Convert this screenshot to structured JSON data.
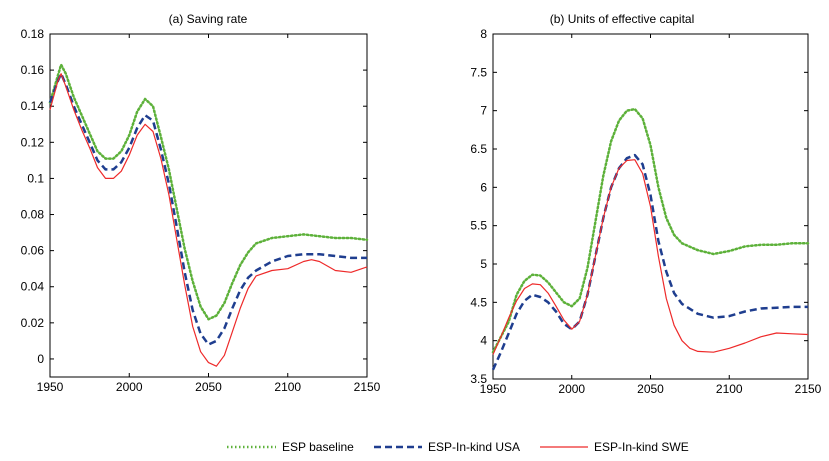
{
  "chart_data": [
    {
      "type": "line",
      "title": "(a) Saving rate",
      "xlabel": "",
      "ylabel": "",
      "xlim": [
        1950,
        2150
      ],
      "ylim": [
        -0.01,
        0.18
      ],
      "xticks": [
        "1950",
        "2000",
        "2050",
        "2100",
        "2150"
      ],
      "yticks": [
        "0",
        "0.02",
        "0.04",
        "0.06",
        "0.08",
        "0.1",
        "0.12",
        "0.14",
        "0.16",
        "0.18"
      ],
      "series": [
        {
          "name": "ESP baseline",
          "color": "#5db13a",
          "style": "dotted",
          "points": [
            [
              1950,
              0.142
            ],
            [
              1955,
              0.157
            ],
            [
              1957,
              0.163
            ],
            [
              1960,
              0.158
            ],
            [
              1965,
              0.145
            ],
            [
              1970,
              0.135
            ],
            [
              1975,
              0.125
            ],
            [
              1980,
              0.115
            ],
            [
              1985,
              0.111
            ],
            [
              1990,
              0.111
            ],
            [
              1995,
              0.115
            ],
            [
              2000,
              0.124
            ],
            [
              2005,
              0.137
            ],
            [
              2010,
              0.144
            ],
            [
              2015,
              0.14
            ],
            [
              2020,
              0.123
            ],
            [
              2025,
              0.105
            ],
            [
              2030,
              0.083
            ],
            [
              2035,
              0.061
            ],
            [
              2040,
              0.043
            ],
            [
              2045,
              0.029
            ],
            [
              2050,
              0.022
            ],
            [
              2055,
              0.024
            ],
            [
              2060,
              0.031
            ],
            [
              2065,
              0.042
            ],
            [
              2070,
              0.052
            ],
            [
              2075,
              0.059
            ],
            [
              2080,
              0.064
            ],
            [
              2090,
              0.067
            ],
            [
              2100,
              0.068
            ],
            [
              2110,
              0.069
            ],
            [
              2120,
              0.068
            ],
            [
              2130,
              0.067
            ],
            [
              2140,
              0.067
            ],
            [
              2150,
              0.066
            ]
          ]
        },
        {
          "name": "ESP-In-kind USA",
          "color": "#1f3e8f",
          "style": "dashed",
          "points": [
            [
              1950,
              0.142
            ],
            [
              1955,
              0.154
            ],
            [
              1957,
              0.158
            ],
            [
              1960,
              0.152
            ],
            [
              1965,
              0.14
            ],
            [
              1970,
              0.13
            ],
            [
              1975,
              0.12
            ],
            [
              1980,
              0.11
            ],
            [
              1985,
              0.105
            ],
            [
              1990,
              0.105
            ],
            [
              1995,
              0.109
            ],
            [
              2000,
              0.117
            ],
            [
              2005,
              0.128
            ],
            [
              2010,
              0.135
            ],
            [
              2015,
              0.132
            ],
            [
              2020,
              0.116
            ],
            [
              2025,
              0.097
            ],
            [
              2030,
              0.073
            ],
            [
              2035,
              0.048
            ],
            [
              2040,
              0.027
            ],
            [
              2045,
              0.014
            ],
            [
              2050,
              0.008
            ],
            [
              2055,
              0.01
            ],
            [
              2060,
              0.017
            ],
            [
              2065,
              0.028
            ],
            [
              2070,
              0.038
            ],
            [
              2075,
              0.045
            ],
            [
              2080,
              0.049
            ],
            [
              2090,
              0.054
            ],
            [
              2100,
              0.057
            ],
            [
              2110,
              0.058
            ],
            [
              2120,
              0.058
            ],
            [
              2130,
              0.057
            ],
            [
              2140,
              0.056
            ],
            [
              2150,
              0.056
            ]
          ]
        },
        {
          "name": "ESP-In-kind SWE",
          "color": "#ee2a2a",
          "style": "solid",
          "points": [
            [
              1950,
              0.138
            ],
            [
              1955,
              0.154
            ],
            [
              1957,
              0.158
            ],
            [
              1960,
              0.151
            ],
            [
              1965,
              0.138
            ],
            [
              1970,
              0.127
            ],
            [
              1975,
              0.117
            ],
            [
              1980,
              0.106
            ],
            [
              1985,
              0.1
            ],
            [
              1990,
              0.1
            ],
            [
              1995,
              0.104
            ],
            [
              2000,
              0.113
            ],
            [
              2005,
              0.124
            ],
            [
              2010,
              0.13
            ],
            [
              2015,
              0.126
            ],
            [
              2020,
              0.111
            ],
            [
              2025,
              0.091
            ],
            [
              2030,
              0.066
            ],
            [
              2035,
              0.041
            ],
            [
              2040,
              0.018
            ],
            [
              2045,
              0.004
            ],
            [
              2050,
              -0.002
            ],
            [
              2055,
              -0.004
            ],
            [
              2060,
              0.002
            ],
            [
              2065,
              0.015
            ],
            [
              2070,
              0.028
            ],
            [
              2075,
              0.039
            ],
            [
              2080,
              0.046
            ],
            [
              2090,
              0.049
            ],
            [
              2100,
              0.05
            ],
            [
              2110,
              0.054
            ],
            [
              2115,
              0.055
            ],
            [
              2120,
              0.054
            ],
            [
              2130,
              0.049
            ],
            [
              2140,
              0.048
            ],
            [
              2150,
              0.051
            ]
          ]
        }
      ]
    },
    {
      "type": "line",
      "title": "(b) Units of effective capital",
      "xlabel": "",
      "ylabel": "",
      "xlim": [
        1950,
        2150
      ],
      "ylim": [
        3.5,
        8
      ],
      "xticks": [
        "1950",
        "2000",
        "2050",
        "2100",
        "2150"
      ],
      "yticks": [
        "3.5",
        "4",
        "4.5",
        "5",
        "5.5",
        "6",
        "6.5",
        "7",
        "7.5",
        "8"
      ],
      "series": [
        {
          "name": "ESP baseline",
          "color": "#5db13a",
          "style": "dotted",
          "points": [
            [
              1950,
              3.85
            ],
            [
              1960,
              4.25
            ],
            [
              1965,
              4.6
            ],
            [
              1970,
              4.78
            ],
            [
              1975,
              4.86
            ],
            [
              1980,
              4.85
            ],
            [
              1985,
              4.76
            ],
            [
              1990,
              4.63
            ],
            [
              1995,
              4.5
            ],
            [
              2000,
              4.45
            ],
            [
              2005,
              4.55
            ],
            [
              2010,
              4.95
            ],
            [
              2015,
              5.55
            ],
            [
              2020,
              6.15
            ],
            [
              2025,
              6.6
            ],
            [
              2030,
              6.87
            ],
            [
              2035,
              7.0
            ],
            [
              2040,
              7.02
            ],
            [
              2045,
              6.9
            ],
            [
              2050,
              6.55
            ],
            [
              2055,
              6.0
            ],
            [
              2060,
              5.6
            ],
            [
              2065,
              5.38
            ],
            [
              2070,
              5.27
            ],
            [
              2080,
              5.18
            ],
            [
              2090,
              5.13
            ],
            [
              2100,
              5.17
            ],
            [
              2110,
              5.23
            ],
            [
              2120,
              5.25
            ],
            [
              2130,
              5.25
            ],
            [
              2140,
              5.27
            ],
            [
              2150,
              5.27
            ]
          ]
        },
        {
          "name": "ESP-In-kind USA",
          "color": "#1f3e8f",
          "style": "dashed",
          "points": [
            [
              1950,
              3.62
            ],
            [
              1955,
              3.85
            ],
            [
              1960,
              4.1
            ],
            [
              1965,
              4.35
            ],
            [
              1970,
              4.52
            ],
            [
              1975,
              4.6
            ],
            [
              1980,
              4.57
            ],
            [
              1985,
              4.5
            ],
            [
              1990,
              4.38
            ],
            [
              1995,
              4.22
            ],
            [
              2000,
              4.15
            ],
            [
              2005,
              4.25
            ],
            [
              2010,
              4.6
            ],
            [
              2015,
              5.1
            ],
            [
              2020,
              5.6
            ],
            [
              2025,
              6.0
            ],
            [
              2030,
              6.25
            ],
            [
              2035,
              6.38
            ],
            [
              2040,
              6.42
            ],
            [
              2045,
              6.3
            ],
            [
              2050,
              5.9
            ],
            [
              2055,
              5.3
            ],
            [
              2060,
              4.9
            ],
            [
              2065,
              4.62
            ],
            [
              2070,
              4.48
            ],
            [
              2080,
              4.35
            ],
            [
              2090,
              4.3
            ],
            [
              2100,
              4.32
            ],
            [
              2110,
              4.38
            ],
            [
              2120,
              4.42
            ],
            [
              2130,
              4.43
            ],
            [
              2140,
              4.44
            ],
            [
              2150,
              4.44
            ]
          ]
        },
        {
          "name": "ESP-In-kind SWE",
          "color": "#ee2a2a",
          "style": "solid",
          "points": [
            [
              1950,
              3.82
            ],
            [
              1955,
              4.05
            ],
            [
              1960,
              4.3
            ],
            [
              1965,
              4.52
            ],
            [
              1970,
              4.68
            ],
            [
              1975,
              4.74
            ],
            [
              1980,
              4.73
            ],
            [
              1985,
              4.62
            ],
            [
              1990,
              4.45
            ],
            [
              1995,
              4.27
            ],
            [
              2000,
              4.15
            ],
            [
              2005,
              4.25
            ],
            [
              2010,
              4.6
            ],
            [
              2015,
              5.1
            ],
            [
              2020,
              5.6
            ],
            [
              2025,
              6.0
            ],
            [
              2030,
              6.25
            ],
            [
              2035,
              6.35
            ],
            [
              2040,
              6.36
            ],
            [
              2045,
              6.18
            ],
            [
              2050,
              5.75
            ],
            [
              2055,
              5.1
            ],
            [
              2060,
              4.55
            ],
            [
              2065,
              4.2
            ],
            [
              2070,
              4.0
            ],
            [
              2075,
              3.9
            ],
            [
              2080,
              3.86
            ],
            [
              2090,
              3.85
            ],
            [
              2100,
              3.9
            ],
            [
              2110,
              3.97
            ],
            [
              2120,
              4.05
            ],
            [
              2130,
              4.1
            ],
            [
              2140,
              4.09
            ],
            [
              2150,
              4.08
            ]
          ]
        }
      ]
    }
  ],
  "legend": {
    "position": "bottom",
    "entries": [
      {
        "label": "ESP baseline",
        "color": "#5db13a",
        "style": "dotted"
      },
      {
        "label": "ESP-In-kind USA",
        "color": "#1f3e8f",
        "style": "dashed"
      },
      {
        "label": "ESP-In-kind SWE",
        "color": "#ee2a2a",
        "style": "solid"
      }
    ]
  }
}
